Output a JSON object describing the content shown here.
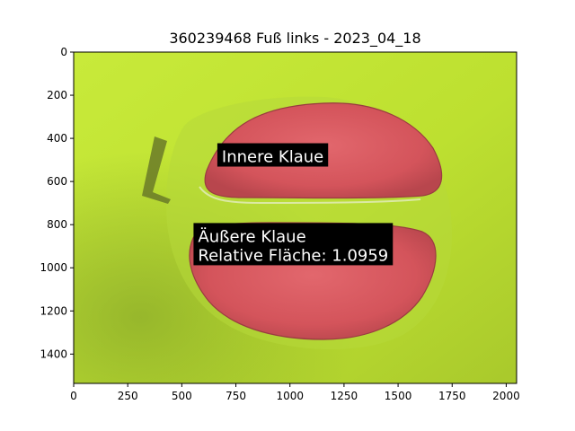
{
  "chart_data": {
    "type": "image",
    "title": "360239468 Fuß links - 2023_04_18",
    "xlim": [
      0,
      2048
    ],
    "ylim": [
      1536,
      0
    ],
    "x_ticks": [
      0,
      250,
      500,
      750,
      1000,
      1250,
      1500,
      1750,
      2000
    ],
    "y_ticks": [
      0,
      200,
      400,
      600,
      800,
      1000,
      1200,
      1400
    ],
    "grid": false,
    "annotations": [
      {
        "text": "Innere Klaue",
        "x": 685,
        "y": 510
      },
      {
        "text": "Äußere Klaue\nRelative Fläche: 1.0959",
        "x": 575,
        "y": 880
      }
    ],
    "regions": [
      {
        "label": "Innere Klaue",
        "color": "#d9535b"
      },
      {
        "label": "Äußere Klaue",
        "color": "#d9535b"
      }
    ],
    "colors": {
      "background_green": "#c4e636",
      "dark_green": "#8aa92a",
      "claw_red": "#d9535b",
      "label_bg": "#000000",
      "label_text": "#ffffff"
    }
  }
}
